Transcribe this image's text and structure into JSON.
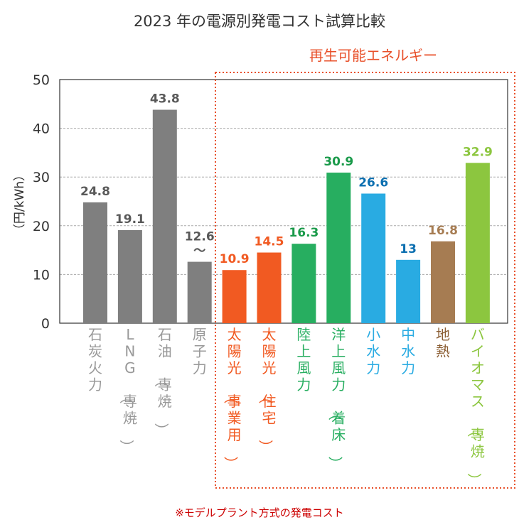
{
  "chart_data": {
    "type": "bar",
    "title": "2023 年の電源別発電コスト試算比較",
    "ylabel": "（円/kWh）",
    "ylim": [
      0,
      50
    ],
    "yticks": [
      0,
      10,
      20,
      30,
      40,
      50
    ],
    "grid": true,
    "annotation_label": "再生可能エネルギー",
    "footnote": "※モデルプラント方式の発電コスト",
    "categories": [
      "石炭火力",
      "LNG（専焼）",
      "石油（専焼）",
      "原子力",
      "太陽光（事業用）",
      "太陽光（住宅）",
      "陸上風力",
      "洋上風力（着床）",
      "小水力",
      "中水力",
      "地熱",
      "バイオマス（専焼）"
    ],
    "values": [
      24.8,
      19.1,
      43.8,
      12.6,
      10.9,
      14.5,
      16.3,
      30.9,
      26.6,
      13,
      16.8,
      32.9
    ],
    "value_labels": [
      "24.8",
      "19.1",
      "43.8",
      "12.6\n〜",
      "10.9",
      "14.5",
      "16.3",
      "30.9",
      "26.6",
      "13",
      "16.8",
      "32.9"
    ],
    "bar_colors": [
      "#7f7f7f",
      "#7f7f7f",
      "#7f7f7f",
      "#7f7f7f",
      "#f15a22",
      "#f15a22",
      "#27ae60",
      "#27ae60",
      "#29abe2",
      "#29abe2",
      "#a67c52",
      "#8cc63f"
    ],
    "value_label_colors": [
      "#595959",
      "#595959",
      "#595959",
      "#595959",
      "#f15a22",
      "#f15a22",
      "#1a9a4a",
      "#1a9a4a",
      "#0c6fb0",
      "#0c6fb0",
      "#a67c52",
      "#8cc63f"
    ],
    "category_label_colors": [
      "#999999",
      "#999999",
      "#999999",
      "#999999",
      "#f15a22",
      "#f15a22",
      "#27ae60",
      "#27ae60",
      "#29abe2",
      "#29abe2",
      "#8b5e34",
      "#8cc63f"
    ]
  }
}
